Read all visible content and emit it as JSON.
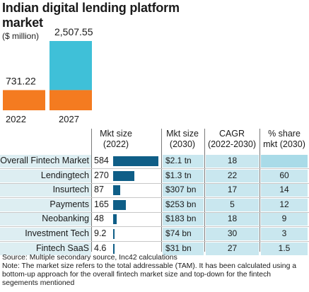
{
  "title": "Indian digital lending platform market",
  "unit_note": "($ million)",
  "colors": {
    "orange": "#f47b20",
    "teal": "#3fc0d8",
    "navy": "#0f5e87",
    "row_bg": "#ddeef2",
    "cell_bg": "#c9e7ef"
  },
  "chart_data": [
    {
      "type": "bar",
      "title": "Indian digital lending platform market",
      "ylabel": "($ million)",
      "categories": [
        "2022",
        "2027"
      ],
      "values": [
        731.22,
        2507.55
      ],
      "value_labels": [
        "731.22",
        "2,507.55"
      ],
      "bar_colors": [
        "#f47b20",
        "#3fc0d8"
      ],
      "ylim": [
        0,
        2507.55
      ],
      "grid": false
    },
    {
      "type": "table",
      "columns": [
        "Mkt size (2022)",
        "Mkt size (2030)",
        "CAGR (2022-2030)",
        "% share mkt (2030)"
      ],
      "rows": [
        {
          "label": "Overall Fintech Market",
          "mkt2022": 584,
          "mkt2022_label": "584",
          "mkt2030": "$2.1 tn",
          "cagr": "18",
          "share": ""
        },
        {
          "label": "Lendingtech",
          "mkt2022": 270,
          "mkt2022_label": "270",
          "mkt2030": "$1.3 tn",
          "cagr": "22",
          "share": "60"
        },
        {
          "label": "Insurtech",
          "mkt2022": 87,
          "mkt2022_label": "87",
          "mkt2030": "$307 bn",
          "cagr": "17",
          "share": "14"
        },
        {
          "label": "Payments",
          "mkt2022": 165,
          "mkt2022_label": "165",
          "mkt2030": "$253 bn",
          "cagr": "5",
          "share": "12"
        },
        {
          "label": "Neobanking",
          "mkt2022": 48,
          "mkt2022_label": "48",
          "mkt2030": "$183 bn",
          "cagr": "18",
          "share": "9"
        },
        {
          "label": "Investment Tech",
          "mkt2022": 9.2,
          "mkt2022_label": "9.2",
          "mkt2030": "$74 bn",
          "cagr": "30",
          "share": "3"
        },
        {
          "label": "Fintech SaaS",
          "mkt2022": 4.6,
          "mkt2022_label": "4.6",
          "mkt2030": "$31 bn",
          "cagr": "27",
          "share": "1.5"
        }
      ]
    }
  ],
  "headers": {
    "mkt2022_l1": "Mkt size",
    "mkt2022_l2": "(2022)",
    "mkt2030_l1": "Mkt size",
    "mkt2030_l2": "(2030)",
    "cagr_l1": "CAGR",
    "cagr_l2": "(2022-2030)",
    "share_l1": "% share",
    "share_l2": "mkt (2030)"
  },
  "footer": {
    "source": "Source: Multiple secondary source, Inc42 calculations",
    "note": "Note: The market size refers to the total addressable (TAM). It has been calculated using a bottom-up approach for the overall fintech market size and top-down for the fintech segements mentioned"
  }
}
